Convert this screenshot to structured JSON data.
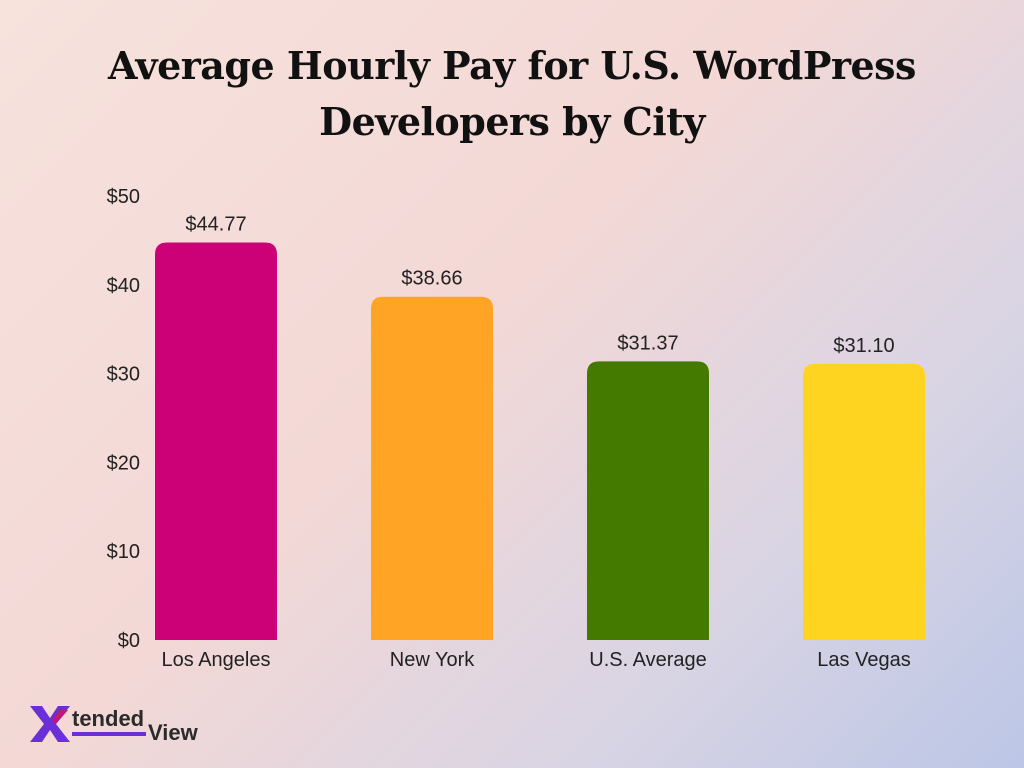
{
  "chart_data": {
    "type": "bar",
    "title_lines": [
      "Average Hourly Pay for U.S. WordPress",
      "Developers by City"
    ],
    "categories": [
      "Los Angeles",
      "New York",
      "U.S. Average",
      "Las Vegas"
    ],
    "values": [
      44.77,
      38.66,
      31.37,
      31.1
    ],
    "value_labels": [
      "$44.77",
      "$38.66",
      "$31.37",
      "$31.10"
    ],
    "colors": [
      "#cc0077",
      "#ffa424",
      "#457a00",
      "#ffd421"
    ],
    "ylim": [
      0,
      50
    ],
    "yticks": [
      0,
      10,
      20,
      30,
      40,
      50
    ],
    "ytick_labels": [
      "$0",
      "$10",
      "$20",
      "$30",
      "$40",
      "$50"
    ],
    "grid": false
  },
  "logo": {
    "text_tended": "tended",
    "text_view": "View",
    "mark_colors": [
      "#6a2fd6",
      "#c0177a"
    ]
  }
}
